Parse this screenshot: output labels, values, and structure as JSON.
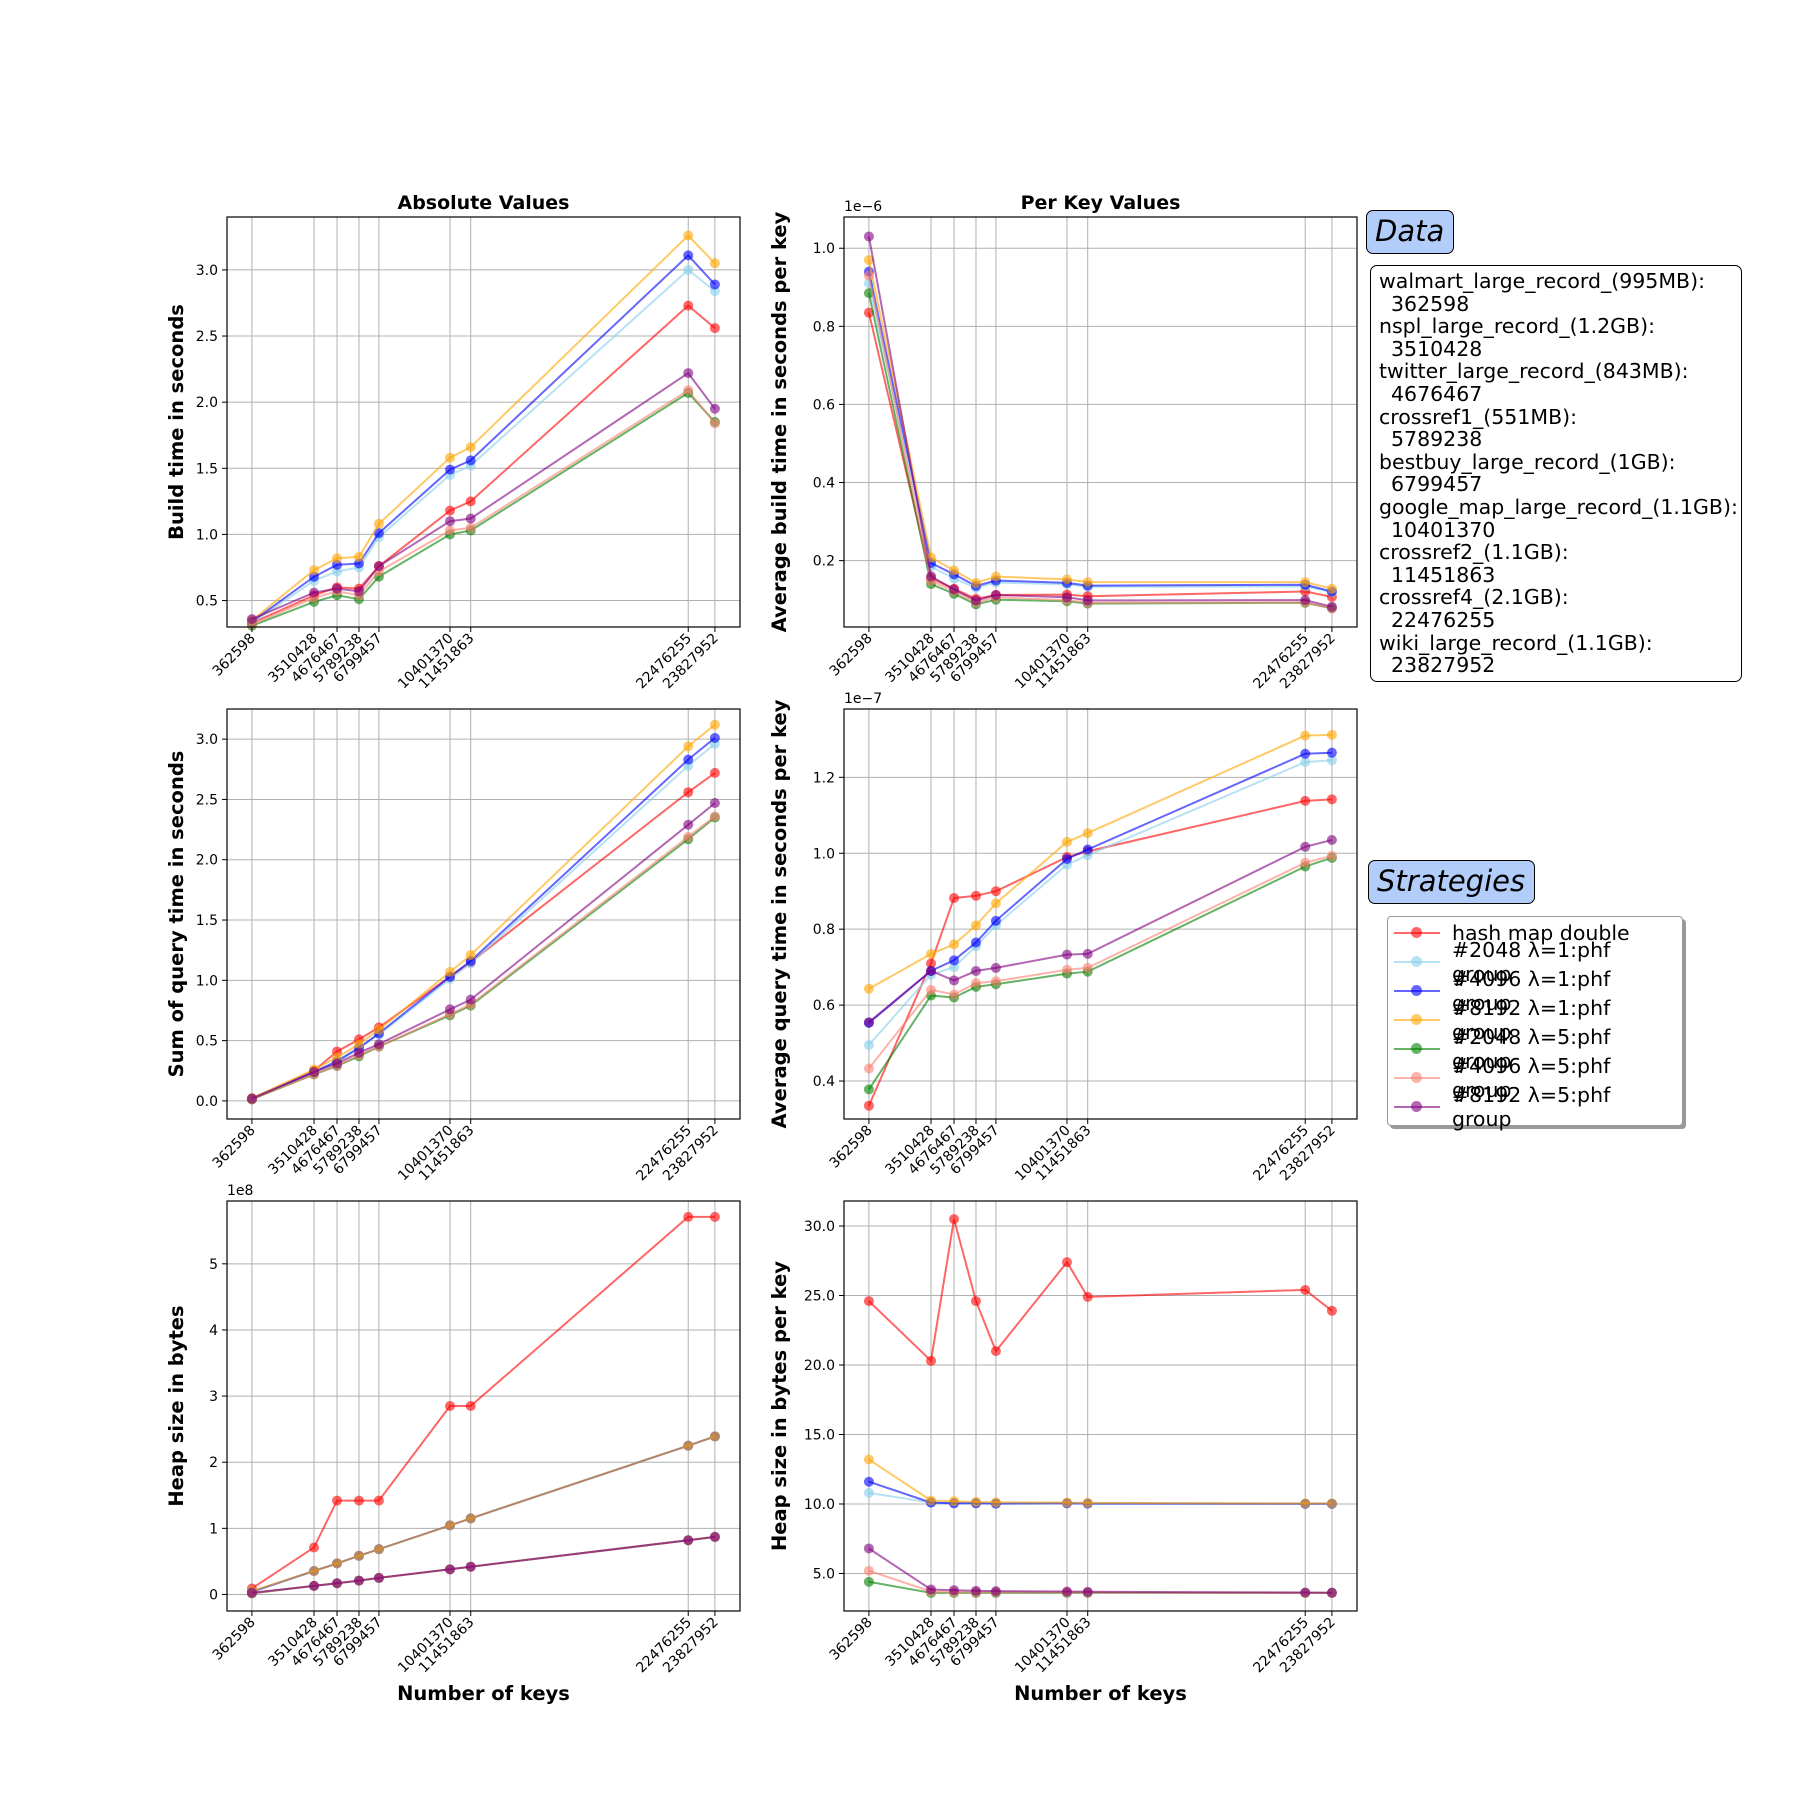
{
  "figure": {
    "column_titles": [
      "Absolute Values",
      "Per Key Values"
    ],
    "xlabel": "Number of keys"
  },
  "data_panel": {
    "title": "Data",
    "entries": [
      {
        "name": "walmart_large_record_(995MB):",
        "keys": "362598"
      },
      {
        "name": "nspl_large_record_(1.2GB):",
        "keys": "3510428"
      },
      {
        "name": "twitter_large_record_(843MB):",
        "keys": "4676467"
      },
      {
        "name": "crossref1_(551MB):",
        "keys": "5789238"
      },
      {
        "name": "bestbuy_large_record_(1GB):",
        "keys": "6799457"
      },
      {
        "name": "google_map_large_record_(1.1GB):",
        "keys": "10401370"
      },
      {
        "name": "crossref2_(1.1GB):",
        "keys": "11451863"
      },
      {
        "name": "crossref4_(2.1GB):",
        "keys": "22476255"
      },
      {
        "name": "wiki_large_record_(1.1GB):",
        "keys": "23827952"
      }
    ]
  },
  "strategies_panel": {
    "title": "Strategies"
  },
  "chart_data": [
    {
      "type": "line",
      "title": "Absolute Values",
      "xlabel": "",
      "ylabel": "Build time in seconds",
      "x": [
        362598,
        3510428,
        4676467,
        5789238,
        6799457,
        10401370,
        11451863,
        22476255,
        23827952
      ],
      "ylim": [
        0.3,
        3.4
      ],
      "yticks": [
        0.5,
        1.0,
        1.5,
        2.0,
        2.5,
        3.0
      ],
      "grid": true,
      "series": [
        {
          "name": "hash map double",
          "color": "#ff0000",
          "values": [
            0.33,
            0.54,
            0.6,
            0.59,
            0.76,
            1.18,
            1.25,
            2.73,
            2.56
          ]
        },
        {
          "name": "#2048 λ=1:phf group",
          "color": "#87ceeb",
          "values": [
            0.33,
            0.65,
            0.72,
            0.75,
            0.98,
            1.45,
            1.52,
            3.0,
            2.84
          ]
        },
        {
          "name": "#4096 λ=1:phf group",
          "color": "#0000ff",
          "values": [
            0.34,
            0.68,
            0.77,
            0.78,
            1.01,
            1.49,
            1.56,
            3.11,
            2.89
          ]
        },
        {
          "name": "#8192 λ=1:phf group",
          "color": "#ffa500",
          "values": [
            0.35,
            0.73,
            0.82,
            0.83,
            1.08,
            1.58,
            1.66,
            3.26,
            3.05
          ]
        },
        {
          "name": "#2048 λ=5:phf group",
          "color": "#008000",
          "values": [
            0.31,
            0.49,
            0.54,
            0.51,
            0.68,
            1.0,
            1.03,
            2.07,
            1.85
          ]
        },
        {
          "name": "#4096 λ=5:phf group",
          "color": "#fa8072",
          "values": [
            0.32,
            0.52,
            0.57,
            0.54,
            0.72,
            1.03,
            1.05,
            2.09,
            1.84
          ]
        },
        {
          "name": "#8192 λ=5:phf group",
          "color": "#800080",
          "values": [
            0.36,
            0.56,
            0.59,
            0.57,
            0.76,
            1.1,
            1.12,
            2.22,
            1.95
          ]
        }
      ]
    },
    {
      "type": "line",
      "title": "Per Key Values",
      "xlabel": "",
      "ylabel": "Average build time in seconds per key",
      "y_offset_label": "1e−6",
      "x": [
        362598,
        3510428,
        4676467,
        5789238,
        6799457,
        10401370,
        11451863,
        22476255,
        23827952
      ],
      "ylim": [
        3e-08,
        1.08e-06
      ],
      "yticks": [
        2e-07,
        4e-07,
        6e-07,
        8e-07,
        1e-06
      ],
      "ytick_labels": [
        "0.2",
        "0.4",
        "0.6",
        "0.8",
        "1.0"
      ],
      "grid": true,
      "series": [
        {
          "name": "hash map double",
          "color": "#ff0000",
          "values": [
            8.35e-07,
            1.55e-07,
            1.28e-07,
            1.02e-07,
            1.12e-07,
            1.13e-07,
            1.09e-07,
            1.21e-07,
            1.07e-07
          ]
        },
        {
          "name": "#2048 λ=1:phf group",
          "color": "#87ceeb",
          "values": [
            9.1e-07,
            1.85e-07,
            1.54e-07,
            1.3e-07,
            1.44e-07,
            1.39e-07,
            1.33e-07,
            1.34e-07,
            1.19e-07
          ]
        },
        {
          "name": "#4096 λ=1:phf group",
          "color": "#0000ff",
          "values": [
            9.4e-07,
            1.94e-07,
            1.65e-07,
            1.35e-07,
            1.49e-07,
            1.43e-07,
            1.36e-07,
            1.38e-07,
            1.21e-07
          ]
        },
        {
          "name": "#8192 λ=1:phf group",
          "color": "#ffa500",
          "values": [
            9.7e-07,
            2.08e-07,
            1.75e-07,
            1.43e-07,
            1.59e-07,
            1.52e-07,
            1.45e-07,
            1.45e-07,
            1.28e-07
          ]
        },
        {
          "name": "#2048 λ=5:phf group",
          "color": "#008000",
          "values": [
            8.85e-07,
            1.4e-07,
            1.15e-07,
            8.8e-08,
            1e-07,
            9.6e-08,
            9e-08,
            9.2e-08,
            7.8e-08
          ]
        },
        {
          "name": "#4096 λ=5:phf group",
          "color": "#fa8072",
          "values": [
            9.3e-07,
            1.48e-07,
            1.22e-07,
            9.3e-08,
            1.06e-07,
            9.9e-08,
            9.2e-08,
            9.3e-08,
            7.7e-08
          ]
        },
        {
          "name": "#8192 λ=5:phf group",
          "color": "#800080",
          "values": [
            1.03e-06,
            1.6e-07,
            1.26e-07,
            9.8e-08,
            1.12e-07,
            1.06e-07,
            9.8e-08,
            9.9e-08,
            8.2e-08
          ]
        }
      ]
    },
    {
      "type": "line",
      "title": "",
      "xlabel": "",
      "ylabel": "Sum of query time in seconds",
      "x": [
        362598,
        3510428,
        4676467,
        5789238,
        6799457,
        10401370,
        11451863,
        22476255,
        23827952
      ],
      "ylim": [
        -0.15,
        3.25
      ],
      "yticks": [
        0.0,
        0.5,
        1.0,
        1.5,
        2.0,
        2.5,
        3.0
      ],
      "grid": true,
      "series": [
        {
          "name": "hash map double",
          "color": "#ff0000",
          "values": [
            0.012,
            0.25,
            0.41,
            0.51,
            0.61,
            1.03,
            1.15,
            2.56,
            2.72
          ]
        },
        {
          "name": "#2048 λ=1:phf group",
          "color": "#87ceeb",
          "values": [
            0.018,
            0.24,
            0.32,
            0.44,
            0.55,
            1.01,
            1.14,
            2.78,
            2.96
          ]
        },
        {
          "name": "#4096 λ=1:phf group",
          "color": "#0000ff",
          "values": [
            0.02,
            0.24,
            0.33,
            0.44,
            0.56,
            1.03,
            1.16,
            2.83,
            3.01
          ]
        },
        {
          "name": "#8192 λ=1:phf group",
          "color": "#ffa500",
          "values": [
            0.023,
            0.26,
            0.36,
            0.47,
            0.59,
            1.07,
            1.21,
            2.94,
            3.12
          ]
        },
        {
          "name": "#2048 λ=5:phf group",
          "color": "#008000",
          "values": [
            0.014,
            0.22,
            0.29,
            0.37,
            0.45,
            0.71,
            0.79,
            2.17,
            2.35
          ]
        },
        {
          "name": "#4096 λ=5:phf group",
          "color": "#fa8072",
          "values": [
            0.016,
            0.22,
            0.29,
            0.38,
            0.45,
            0.72,
            0.8,
            2.19,
            2.36
          ]
        },
        {
          "name": "#8192 λ=5:phf group",
          "color": "#800080",
          "values": [
            0.02,
            0.24,
            0.31,
            0.4,
            0.47,
            0.76,
            0.84,
            2.29,
            2.47
          ]
        }
      ]
    },
    {
      "type": "line",
      "title": "",
      "xlabel": "",
      "ylabel": "Average query time in seconds per key",
      "y_offset_label": "1e−7",
      "x": [
        362598,
        3510428,
        4676467,
        5789238,
        6799457,
        10401370,
        11451863,
        22476255,
        23827952
      ],
      "ylim": [
        3e-08,
        1.38e-07
      ],
      "yticks": [
        4e-08,
        6e-08,
        8e-08,
        1e-07,
        1.2e-07
      ],
      "ytick_labels": [
        "0.4",
        "0.6",
        "0.8",
        "1.0",
        "1.2"
      ],
      "grid": true,
      "series": [
        {
          "name": "hash map double",
          "color": "#ff0000",
          "values": [
            3.35e-08,
            7.1e-08,
            8.82e-08,
            8.88e-08,
            9e-08,
            9.9e-08,
            1.005e-07,
            1.138e-07,
            1.142e-07
          ]
        },
        {
          "name": "#2048 λ=1:phf group",
          "color": "#87ceeb",
          "values": [
            4.95e-08,
            6.8e-08,
            7e-08,
            7.55e-08,
            8.1e-08,
            9.7e-08,
            9.95e-08,
            1.24e-07,
            1.245e-07
          ]
        },
        {
          "name": "#4096 λ=1:phf group",
          "color": "#0000ff",
          "values": [
            5.53e-08,
            6.9e-08,
            7.18e-08,
            7.65e-08,
            8.22e-08,
            9.85e-08,
            1.01e-07,
            1.262e-07,
            1.265e-07
          ]
        },
        {
          "name": "#8192 λ=1:phf group",
          "color": "#ffa500",
          "values": [
            6.43e-08,
            7.35e-08,
            7.6e-08,
            8.1e-08,
            8.68e-08,
            1.03e-07,
            1.053e-07,
            1.31e-07,
            1.312e-07
          ]
        },
        {
          "name": "#2048 λ=5:phf group",
          "color": "#008000",
          "values": [
            3.78e-08,
            6.25e-08,
            6.2e-08,
            6.48e-08,
            6.55e-08,
            6.83e-08,
            6.88e-08,
            9.65e-08,
            9.88e-08
          ]
        },
        {
          "name": "#4096 λ=5:phf group",
          "color": "#fa8072",
          "values": [
            4.33e-08,
            6.4e-08,
            6.28e-08,
            6.58e-08,
            6.63e-08,
            6.93e-08,
            6.98e-08,
            9.75e-08,
            9.93e-08
          ]
        },
        {
          "name": "#8192 λ=5:phf group",
          "color": "#800080",
          "values": [
            5.55e-08,
            6.9e-08,
            6.65e-08,
            6.9e-08,
            6.98e-08,
            7.33e-08,
            7.35e-08,
            1.017e-07,
            1.035e-07
          ]
        }
      ]
    },
    {
      "type": "line",
      "title": "",
      "xlabel": "Number of keys",
      "ylabel": "Heap size in bytes",
      "y_offset_label": "1e8",
      "x": [
        362598,
        3510428,
        4676467,
        5789238,
        6799457,
        10401370,
        11451863,
        22476255,
        23827952
      ],
      "ylim": [
        -25000000.0,
        595000000.0
      ],
      "yticks": [
        0,
        100000000.0,
        200000000.0,
        300000000.0,
        400000000.0,
        500000000.0
      ],
      "ytick_labels": [
        "0",
        "1",
        "2",
        "3",
        "4",
        "5"
      ],
      "grid": true,
      "series": [
        {
          "name": "hash map double",
          "color": "#ff0000",
          "values": [
            9000000.0,
            71000000.0,
            142000000.0,
            142000000.0,
            142000000.0,
            285000000.0,
            285000000.0,
            571000000.0,
            571000000.0
          ]
        },
        {
          "name": "#2048 λ=1:phf group",
          "color": "#87ceeb",
          "values": [
            4000000.0,
            35500000.0,
            47000000.0,
            58500000.0,
            68500000.0,
            104500000.0,
            115000000.0,
            225000000.0,
            239000000.0
          ]
        },
        {
          "name": "#4096 λ=1:phf group",
          "color": "#0000ff",
          "values": [
            4000000.0,
            35500000.0,
            47000000.0,
            58500000.0,
            68500000.0,
            104500000.0,
            115000000.0,
            225000000.0,
            239000000.0
          ]
        },
        {
          "name": "#8192 λ=1:phf group",
          "color": "#ffa500",
          "values": [
            5000000.0,
            35500000.0,
            47000000.0,
            58500000.0,
            68500000.0,
            104500000.0,
            115000000.0,
            225000000.0,
            239000000.0
          ]
        },
        {
          "name": "#2048 λ=5:phf group",
          "color": "#008000",
          "values": [
            1600000.0,
            13000000.0,
            17000000.0,
            21000000.0,
            25000000.0,
            38000000.0,
            42000000.0,
            82000000.0,
            87000000.0
          ]
        },
        {
          "name": "#4096 λ=5:phf group",
          "color": "#fa8072",
          "values": [
            1900000.0,
            13000000.0,
            17000000.0,
            21000000.0,
            25000000.0,
            38000000.0,
            42000000.0,
            82000000.0,
            87000000.0
          ]
        },
        {
          "name": "#8192 λ=5:phf group",
          "color": "#800080",
          "values": [
            2500000.0,
            13000000.0,
            17000000.0,
            21000000.0,
            25000000.0,
            38000000.0,
            42000000.0,
            82000000.0,
            87000000.0
          ]
        }
      ]
    },
    {
      "type": "line",
      "title": "",
      "xlabel": "Number of keys",
      "ylabel": "Heap size in bytes per key",
      "x": [
        362598,
        3510428,
        4676467,
        5789238,
        6799457,
        10401370,
        11451863,
        22476255,
        23827952
      ],
      "ylim": [
        2.3,
        31.8
      ],
      "yticks": [
        5,
        10,
        15,
        20,
        25,
        30
      ],
      "grid": true,
      "series": [
        {
          "name": "hash map double",
          "color": "#ff0000",
          "values": [
            24.6,
            20.3,
            30.5,
            24.6,
            21.0,
            27.4,
            24.9,
            25.4,
            23.9
          ]
        },
        {
          "name": "#2048 λ=1:phf group",
          "color": "#87ceeb",
          "values": [
            10.8,
            10.1,
            10.05,
            10.05,
            10.03,
            10.05,
            10.03,
            10.01,
            10.01
          ]
        },
        {
          "name": "#4096 λ=1:phf group",
          "color": "#0000ff",
          "values": [
            11.6,
            10.1,
            10.05,
            10.05,
            10.03,
            10.05,
            10.03,
            10.01,
            10.01
          ]
        },
        {
          "name": "#8192 λ=1:phf group",
          "color": "#ffa500",
          "values": [
            13.2,
            10.25,
            10.2,
            10.15,
            10.12,
            10.1,
            10.08,
            10.04,
            10.04
          ]
        },
        {
          "name": "#2048 λ=5:phf group",
          "color": "#008000",
          "values": [
            4.4,
            3.6,
            3.6,
            3.6,
            3.6,
            3.6,
            3.6,
            3.6,
            3.6
          ]
        },
        {
          "name": "#4096 λ=5:phf group",
          "color": "#fa8072",
          "values": [
            5.2,
            3.7,
            3.65,
            3.65,
            3.65,
            3.65,
            3.63,
            3.6,
            3.6
          ]
        },
        {
          "name": "#8192 λ=5:phf group",
          "color": "#800080",
          "values": [
            6.8,
            3.85,
            3.8,
            3.75,
            3.73,
            3.7,
            3.68,
            3.63,
            3.62
          ]
        }
      ]
    }
  ]
}
